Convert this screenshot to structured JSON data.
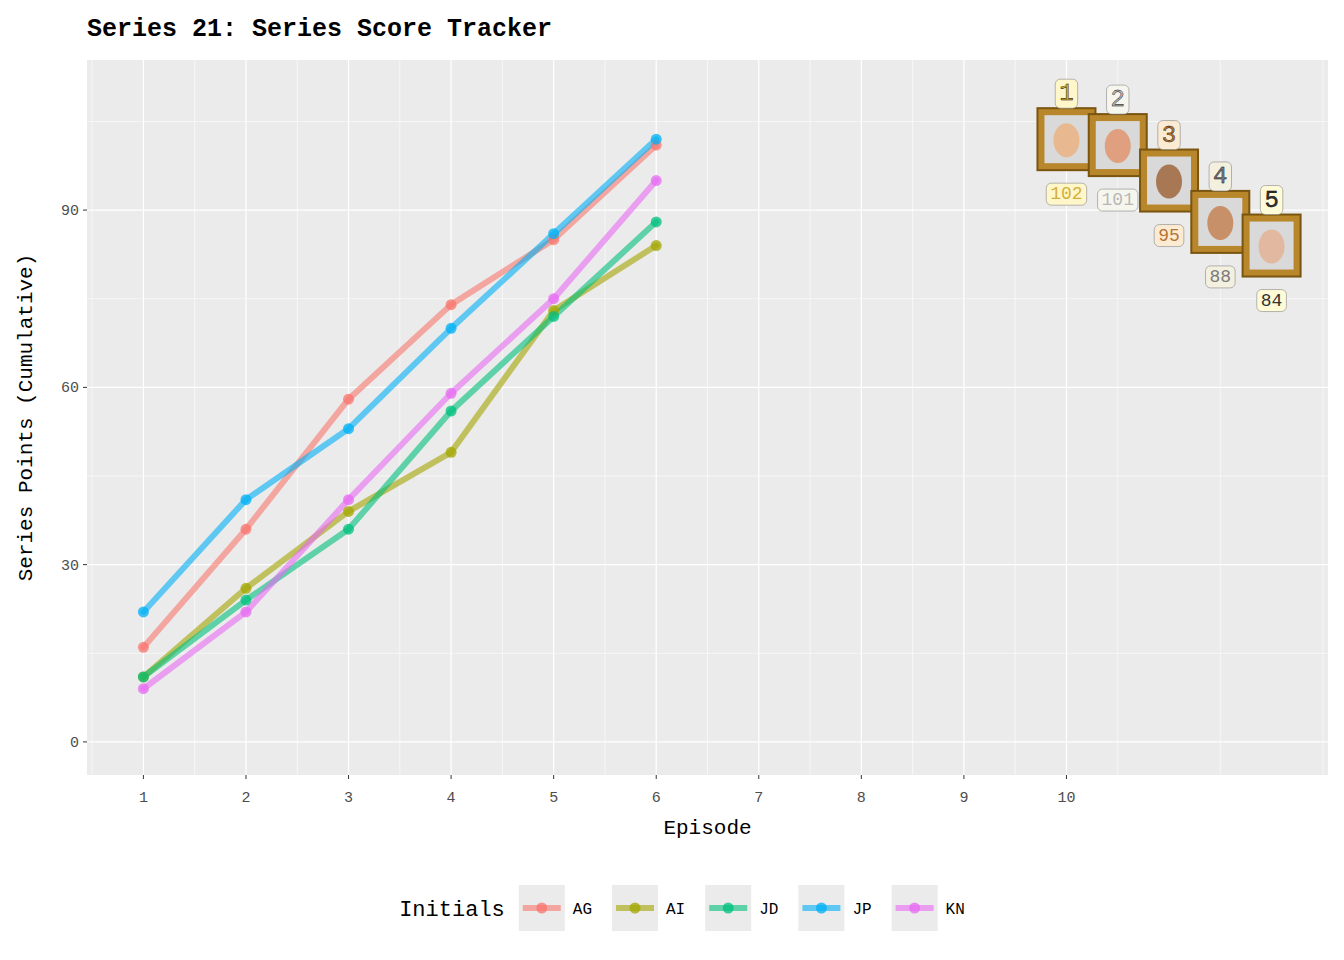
{
  "chart_data": {
    "type": "line",
    "title": "Series 21: Series Score Tracker",
    "x_label": "Episode",
    "y_label": "Series Points (Cumulative)",
    "legend_title": "Initials",
    "x": [
      1,
      2,
      3,
      4,
      5,
      6
    ],
    "xlim": [
      0.45,
      12.55
    ],
    "xticks": [
      1,
      2,
      3,
      4,
      5,
      6,
      7,
      8,
      9,
      10
    ],
    "ylim": [
      -5.6,
      115.4
    ],
    "yticks": [
      0,
      30,
      60,
      90
    ],
    "grid": true,
    "legend": "bottom",
    "marker": "circle",
    "series": [
      {
        "name": "AG",
        "color": "#F8766D",
        "values": [
          16,
          36,
          58,
          74,
          85,
          101
        ]
      },
      {
        "name": "AI",
        "color": "#A3A500",
        "values": [
          11,
          26,
          39,
          49,
          73,
          84
        ]
      },
      {
        "name": "JD",
        "color": "#00BF7D",
        "values": [
          11,
          24,
          36,
          56,
          72,
          88
        ]
      },
      {
        "name": "JP",
        "color": "#00B0F6",
        "values": [
          22,
          41,
          53,
          70,
          86,
          102
        ]
      },
      {
        "name": "KN",
        "color": "#E76BF3",
        "values": [
          9,
          22,
          41,
          59,
          75,
          95
        ]
      }
    ],
    "rankings": [
      {
        "rank": 1,
        "score": 102
      },
      {
        "rank": 2,
        "score": 101
      },
      {
        "rank": 3,
        "score": 95
      },
      {
        "rank": 4,
        "score": 88
      },
      {
        "rank": 5,
        "score": 84
      }
    ]
  }
}
